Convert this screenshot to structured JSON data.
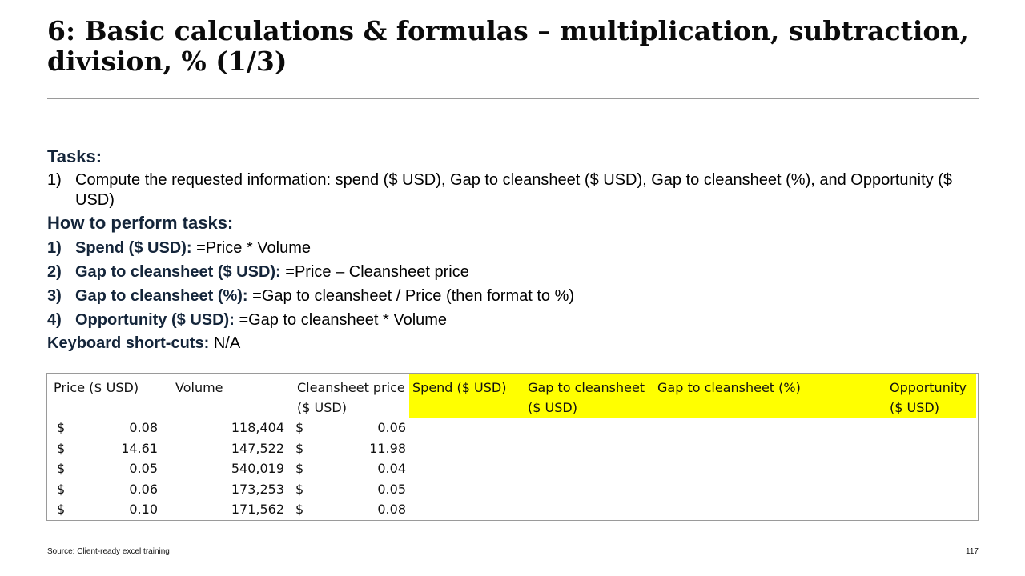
{
  "title": "6: Basic calculations & formulas – multiplication, subtraction, division, % (1/3)",
  "tasks": {
    "heading": "Tasks:",
    "items": [
      {
        "num": "1)",
        "text": "Compute the requested information: spend ($ USD), Gap to cleansheet ($ USD), Gap to cleansheet (%), and Opportunity ($ USD)"
      }
    ]
  },
  "how": {
    "heading": "How to perform tasks:",
    "steps": [
      {
        "num": "1)",
        "label": "Spend ($ USD):",
        "formula": "=Price * Volume"
      },
      {
        "num": "2)",
        "label": "Gap to cleansheet ($ USD):",
        "formula": "=Price – Cleansheet price"
      },
      {
        "num": "3)",
        "label": "Gap to cleansheet (%):",
        "formula": "=Gap to cleansheet / Price (then format to %)"
      },
      {
        "num": "4)",
        "label": "Opportunity ($ USD):",
        "formula": "=Gap to cleansheet * Volume"
      }
    ],
    "shortcuts_label": "Keyboard short-cuts:",
    "shortcuts_value": "N/A"
  },
  "table": {
    "headers": {
      "price": "Price ($ USD)",
      "volume": "Volume",
      "cleansheet_l1": "Cleansheet price",
      "cleansheet_l2": "($ USD)",
      "spend": "Spend ($ USD)",
      "gap_usd_l1": "Gap to cleansheet",
      "gap_usd_l2": "($ USD)",
      "gap_pct": "Gap to cleansheet (%)",
      "opp_l1": "Opportunity",
      "opp_l2": "($ USD)"
    },
    "currency_symbol": "$",
    "rows": [
      {
        "price": "0.08",
        "volume": "118,404",
        "cleansheet": "0.06"
      },
      {
        "price": "14.61",
        "volume": "147,522",
        "cleansheet": "11.98"
      },
      {
        "price": "0.05",
        "volume": "540,019",
        "cleansheet": "0.04"
      },
      {
        "price": "0.06",
        "volume": "173,253",
        "cleansheet": "0.05"
      },
      {
        "price": "0.10",
        "volume": "171,562",
        "cleansheet": "0.08"
      }
    ],
    "highlight_color": "#ffff00"
  },
  "footer": {
    "source": "Source: Client-ready excel training",
    "page_number": "117"
  }
}
